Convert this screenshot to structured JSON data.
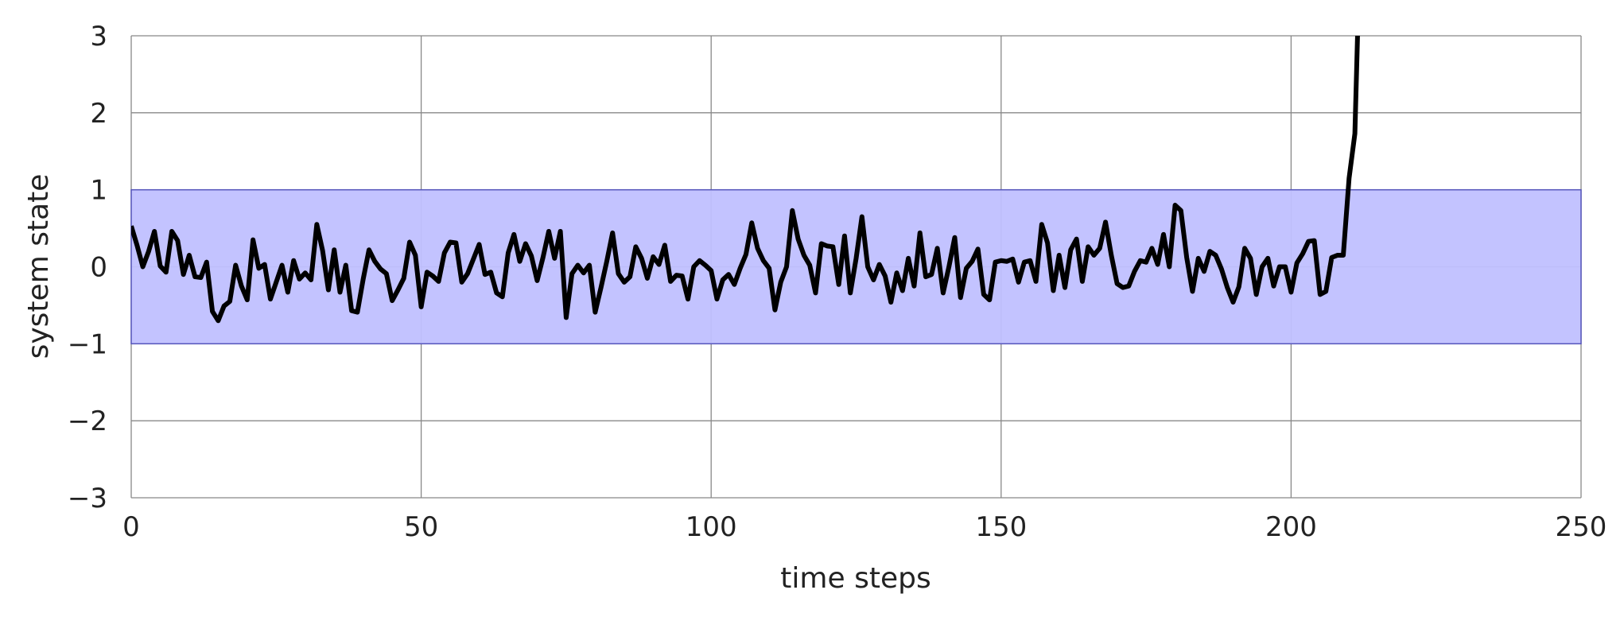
{
  "chart_data": {
    "type": "line",
    "title": "",
    "xlabel": "time steps",
    "ylabel": "system state",
    "xlim": [
      0,
      250
    ],
    "ylim": [
      -3,
      3
    ],
    "xticks": [
      0,
      50,
      100,
      150,
      200,
      250
    ],
    "yticks": [
      -3,
      -2,
      -1,
      0,
      1,
      2,
      3
    ],
    "xtick_labels": [
      "0",
      "50",
      "100",
      "150",
      "200",
      "250"
    ],
    "ytick_labels": [
      "−3",
      "−2",
      "−1",
      "0",
      "1",
      "2",
      "3"
    ],
    "grid": true,
    "band": {
      "y_min": -1,
      "y_max": 1,
      "fill": "#c0c0ff",
      "edge": "#5555bb"
    },
    "line_color": "#000000",
    "series": [
      {
        "x_start": 0,
        "x_step": 1,
        "values": [
          0.53,
          0.28,
          0,
          0.2,
          0.46,
          0.01,
          -0.07,
          0.46,
          0.34,
          -0.1,
          0.15,
          -0.13,
          -0.14,
          0.06,
          -0.58,
          -0.7,
          -0.51,
          -0.45,
          0.02,
          -0.25,
          -0.43,
          0.35,
          -0.02,
          0.03,
          -0.42,
          -0.2,
          0.02,
          -0.33,
          0.08,
          -0.16,
          -0.08,
          -0.17,
          0.55,
          0.21,
          -0.3,
          0.22,
          -0.33,
          0.02,
          -0.57,
          -0.59,
          -0.16,
          0.22,
          0.07,
          -0.03,
          -0.09,
          -0.44,
          -0.3,
          -0.15,
          0.32,
          0.15,
          -0.52,
          -0.07,
          -0.12,
          -0.19,
          0.18,
          0.32,
          0.31,
          -0.2,
          -0.09,
          0.1,
          0.29,
          -0.1,
          -0.07,
          -0.34,
          -0.39,
          0.18,
          0.42,
          0.07,
          0.3,
          0.14,
          -0.18,
          0.12,
          0.46,
          0.11,
          0.46,
          -0.66,
          -0.09,
          0.02,
          -0.08,
          0.02,
          -0.59,
          -0.27,
          0.07,
          0.44,
          -0.09,
          -0.2,
          -0.13,
          0.26,
          0.11,
          -0.15,
          0.13,
          0.03,
          0.28,
          -0.19,
          -0.11,
          -0.12,
          -0.42,
          0,
          0.08,
          0.02,
          -0.05,
          -0.42,
          -0.17,
          -0.1,
          -0.23,
          -0.02,
          0.16,
          0.57,
          0.24,
          0.08,
          -0.02,
          -0.56,
          -0.2,
          0,
          0.73,
          0.36,
          0.15,
          0.02,
          -0.34,
          0.3,
          0.27,
          0.26,
          -0.23,
          0.4,
          -0.34,
          0.11,
          0.65,
          0,
          -0.17,
          0.03,
          -0.12,
          -0.46,
          -0.08,
          -0.31,
          0.11,
          -0.25,
          0.44,
          -0.13,
          -0.1,
          0.24,
          -0.34,
          0,
          0.38,
          -0.4,
          -0.02,
          0.07,
          0.23,
          -0.36,
          -0.43,
          0.06,
          0.08,
          0.07,
          0.1,
          -0.2,
          0.06,
          0.08,
          -0.19,
          0.55,
          0.31,
          -0.31,
          0.15,
          -0.27,
          0.22,
          0.36,
          -0.19,
          0.26,
          0.15,
          0.24,
          0.58,
          0.15,
          -0.22,
          -0.27,
          -0.25,
          -0.06,
          0.08,
          0.06,
          0.24,
          0.03,
          0.42,
          0,
          0.8,
          0.73,
          0.12,
          -0.32,
          0.11,
          -0.06,
          0.2,
          0.15,
          -0.03,
          -0.27,
          -0.46,
          -0.26,
          0.24,
          0.11,
          -0.36,
          0,
          0.11,
          -0.25,
          0,
          0,
          -0.33,
          0.05,
          0.17,
          0.33,
          0.34,
          -0.36,
          -0.32,
          0.12,
          0.15,
          0.15,
          1.15,
          1.73,
          4.5
        ]
      }
    ]
  }
}
